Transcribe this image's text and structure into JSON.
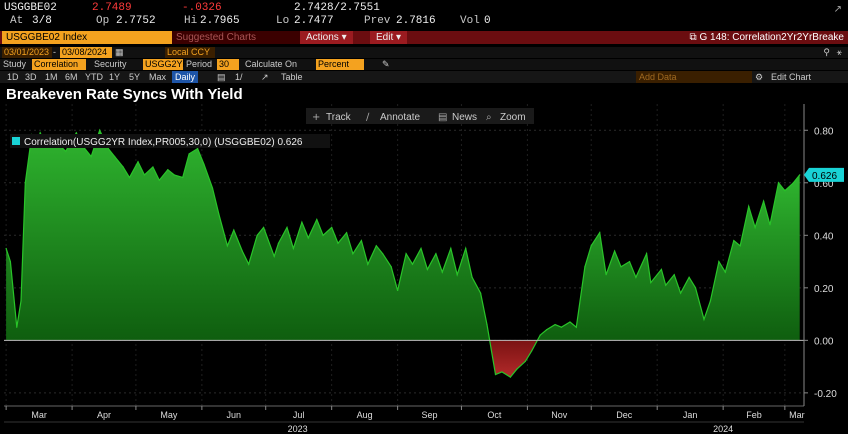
{
  "quote": {
    "ticker": "USGGBE02",
    "last": "2.7489",
    "change": "-.0326",
    "bid_ask": "2.7428/2.7551",
    "at_label": "At",
    "at_value": "3/8",
    "op_label": "Op",
    "op_value": "2.7752",
    "hi_label": "Hi",
    "hi_value": "2.7965",
    "lo_label": "Lo",
    "lo_value": "2.7477",
    "prev_label": "Prev",
    "prev_value": "2.7816",
    "vol_label": "Vol",
    "vol_value": "0"
  },
  "toolbar": {
    "security": "USGGBE02 Index",
    "suggested": "Suggested Charts",
    "actions": "Actions",
    "edit": "Edit",
    "graph_title": "G 148: Correlation2Yr2YrBreake"
  },
  "controls": {
    "start_date": "03/01/2023",
    "end_date": "03/08/2024",
    "currency": "Local CCY",
    "study_label": "Study",
    "study_value": "Correlation",
    "security_label": "Security",
    "security_value": "USGG2YR I",
    "period_label": "Period",
    "period_value": "30",
    "calc_label": "Calculate On",
    "calc_value": "Percent",
    "periods": [
      "1D",
      "3D",
      "1M",
      "6M",
      "YTD",
      "1Y",
      "5Y",
      "Max",
      "Daily",
      "1/"
    ],
    "selected_period": "Daily",
    "table_label": "Table",
    "add_data": "Add Data",
    "edit_chart": "Edit Chart"
  },
  "chart_menu": {
    "track": "Track",
    "annotate": "Annotate",
    "news": "News",
    "zoom": "Zoom"
  },
  "colors": {
    "positive_fill": "#1a8a1a",
    "negative_fill": "#8f1d1d",
    "line": "#1fbf1f",
    "legend_swatch": "#19d3d6",
    "last_value_tag": "#19d3d6"
  },
  "chart_data": {
    "type": "area",
    "title": "Breakeven Rate Syncs With Yield",
    "series": [
      {
        "name": "Correlation(USGG2YR Index,PR005,30,0) (USGGBE02) 0.626",
        "last_value": "0.626",
        "x": [
          "2023-03-01",
          "2023-03-03",
          "2023-03-06",
          "2023-03-08",
          "2023-03-10",
          "2023-03-13",
          "2023-03-15",
          "2023-03-17",
          "2023-03-20",
          "2023-03-24",
          "2023-03-29",
          "2023-04-03",
          "2023-04-06",
          "2023-04-10",
          "2023-04-14",
          "2023-04-18",
          "2023-04-21",
          "2023-04-25",
          "2023-04-28",
          "2023-05-02",
          "2023-05-05",
          "2023-05-09",
          "2023-05-12",
          "2023-05-16",
          "2023-05-19",
          "2023-05-23",
          "2023-05-26",
          "2023-05-30",
          "2023-06-02",
          "2023-06-06",
          "2023-06-09",
          "2023-06-13",
          "2023-06-16",
          "2023-06-20",
          "2023-06-23",
          "2023-06-27",
          "2023-06-30",
          "2023-07-05",
          "2023-07-07",
          "2023-07-11",
          "2023-07-14",
          "2023-07-18",
          "2023-07-21",
          "2023-07-25",
          "2023-07-28",
          "2023-08-01",
          "2023-08-04",
          "2023-08-08",
          "2023-08-11",
          "2023-08-15",
          "2023-08-18",
          "2023-08-22",
          "2023-08-25",
          "2023-08-29",
          "2023-09-01",
          "2023-09-05",
          "2023-09-08",
          "2023-09-12",
          "2023-09-15",
          "2023-09-19",
          "2023-09-22",
          "2023-09-26",
          "2023-09-29",
          "2023-10-03",
          "2023-10-06",
          "2023-10-10",
          "2023-10-13",
          "2023-10-17",
          "2023-10-20",
          "2023-10-24",
          "2023-10-27",
          "2023-10-31",
          "2023-11-03",
          "2023-11-07",
          "2023-11-10",
          "2023-11-14",
          "2023-11-17",
          "2023-11-21",
          "2023-11-24",
          "2023-11-28",
          "2023-12-01",
          "2023-12-05",
          "2023-12-08",
          "2023-12-12",
          "2023-12-15",
          "2023-12-19",
          "2023-12-22",
          "2023-12-27",
          "2023-12-29",
          "2024-01-03",
          "2024-01-05",
          "2024-01-09",
          "2024-01-12",
          "2024-01-16",
          "2024-01-19",
          "2024-01-23",
          "2024-01-26",
          "2024-01-30",
          "2024-02-02",
          "2024-02-06",
          "2024-02-09",
          "2024-02-13",
          "2024-02-16",
          "2024-02-20",
          "2024-02-23",
          "2024-02-27",
          "2024-03-01",
          "2024-03-05",
          "2024-03-08"
        ],
        "values": [
          0.35,
          0.3,
          0.05,
          0.15,
          0.6,
          0.78,
          0.74,
          0.79,
          0.74,
          0.76,
          0.72,
          0.79,
          0.74,
          0.7,
          0.8,
          0.73,
          0.7,
          0.66,
          0.62,
          0.68,
          0.63,
          0.66,
          0.61,
          0.65,
          0.63,
          0.62,
          0.71,
          0.73,
          0.67,
          0.58,
          0.48,
          0.36,
          0.42,
          0.34,
          0.29,
          0.4,
          0.43,
          0.32,
          0.37,
          0.43,
          0.35,
          0.45,
          0.39,
          0.46,
          0.4,
          0.43,
          0.37,
          0.41,
          0.33,
          0.38,
          0.29,
          0.36,
          0.33,
          0.28,
          0.19,
          0.33,
          0.29,
          0.35,
          0.27,
          0.33,
          0.26,
          0.35,
          0.25,
          0.35,
          0.24,
          0.18,
          0.06,
          -0.13,
          -0.12,
          -0.14,
          -0.11,
          -0.08,
          -0.04,
          0.02,
          0.04,
          0.06,
          0.05,
          0.07,
          0.05,
          0.28,
          0.36,
          0.41,
          0.25,
          0.34,
          0.28,
          0.3,
          0.24,
          0.33,
          0.22,
          0.27,
          0.21,
          0.25,
          0.18,
          0.24,
          0.2,
          0.08,
          0.15,
          0.3,
          0.26,
          0.38,
          0.36,
          0.51,
          0.43,
          0.53,
          0.44,
          0.6,
          0.57,
          0.6,
          0.63
        ]
      }
    ],
    "xticks": [
      "Mar",
      "Apr",
      "May",
      "Jun",
      "Jul",
      "Aug",
      "Sep",
      "Oct",
      "Nov",
      "Dec",
      "Jan",
      "Feb",
      "Mar"
    ],
    "xtick_dates": [
      "2023-03-01",
      "2023-04-01",
      "2023-05-01",
      "2023-06-01",
      "2023-07-01",
      "2023-08-01",
      "2023-09-01",
      "2023-10-01",
      "2023-11-01",
      "2023-12-01",
      "2024-01-01",
      "2024-02-01",
      "2024-03-01"
    ],
    "year_labels": [
      "2023",
      "2024"
    ],
    "year_label_dates": [
      "2023-07-16",
      "2024-02-01"
    ],
    "yticks": [
      "0.80",
      "0.60",
      "0.40",
      "0.20",
      "0.00",
      "-0.20"
    ],
    "ytick_values": [
      0.8,
      0.6,
      0.4,
      0.2,
      0.0,
      -0.2
    ],
    "ylim": [
      -0.25,
      0.9
    ],
    "xlim": [
      "2023-02-28",
      "2024-03-10"
    ],
    "grid": true,
    "legend_position": "top-left",
    "xlabel": "",
    "ylabel": ""
  }
}
